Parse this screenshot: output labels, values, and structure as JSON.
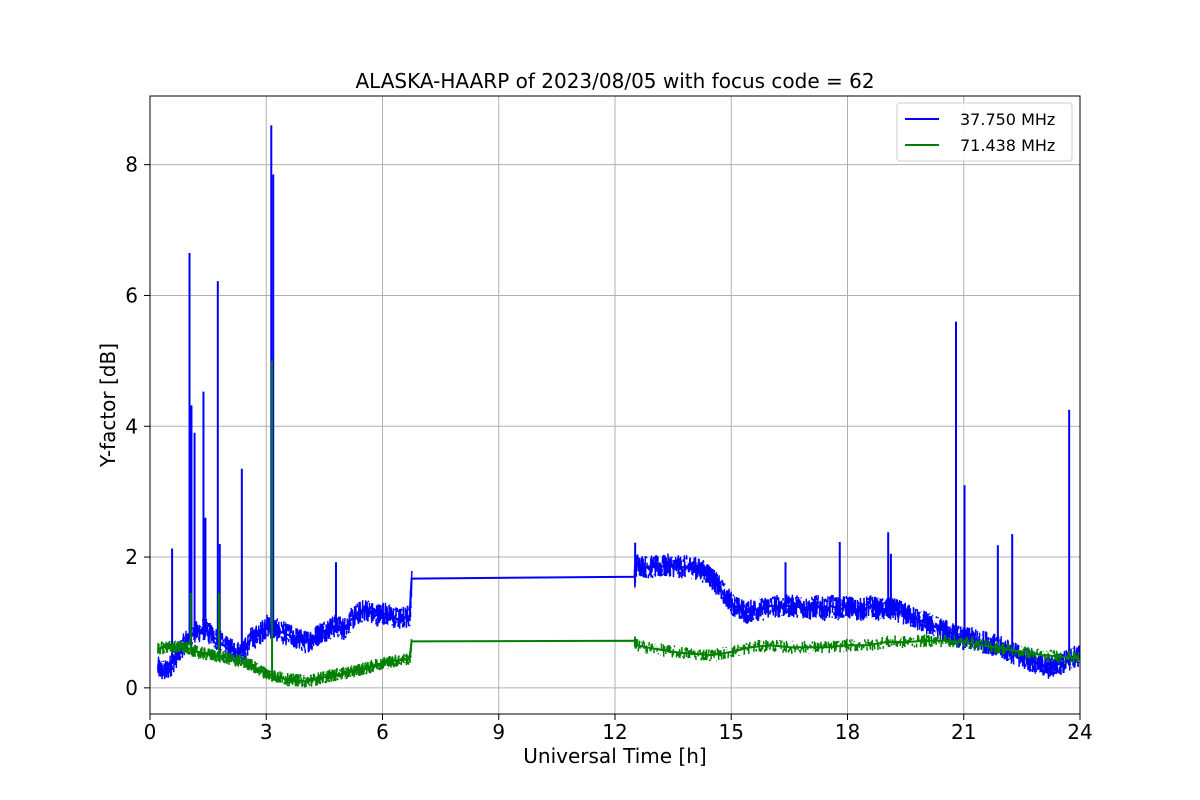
{
  "chart_data": {
    "type": "line",
    "title": "ALASKA-HAARP of 2023/08/05 with focus code = 62",
    "xlabel": "Universal Time [h]",
    "ylabel": "Y-factor [dB]",
    "xlim": [
      0,
      24
    ],
    "ylim": [
      -0.4,
      9.05
    ],
    "xticks": [
      0,
      3,
      6,
      9,
      12,
      15,
      18,
      21,
      24
    ],
    "xtick_labels": [
      "0",
      "3",
      "6",
      "9",
      "12",
      "15",
      "18",
      "21",
      "24"
    ],
    "yticks": [
      0,
      2,
      4,
      6,
      8
    ],
    "ytick_labels": [
      "0",
      "2",
      "4",
      "6",
      "8"
    ],
    "grid": true,
    "legend_position": "top-right",
    "series": [
      {
        "name": "37.750 MHz",
        "color": "#0000ff",
        "x": [
          0.2,
          0.4,
          0.6,
          0.8,
          1.0,
          1.2,
          1.4,
          1.6,
          1.8,
          2.0,
          2.2,
          2.4,
          2.6,
          2.8,
          3.0,
          3.2,
          3.4,
          3.6,
          3.8,
          4.0,
          4.2,
          4.4,
          4.6,
          4.8,
          5.0,
          5.2,
          5.4,
          5.6,
          5.8,
          6.0,
          6.2,
          6.4,
          6.7,
          6.75,
          12.5,
          12.55,
          12.8,
          13.0,
          13.2,
          13.4,
          13.6,
          13.8,
          14.0,
          14.2,
          14.4,
          14.6,
          14.8,
          15.0,
          15.2,
          15.4,
          15.6,
          15.8,
          16.0,
          16.2,
          16.4,
          16.6,
          16.8,
          17.0,
          17.2,
          17.4,
          17.6,
          17.8,
          18.0,
          18.2,
          18.4,
          18.6,
          18.8,
          19.0,
          19.2,
          19.4,
          19.6,
          19.8,
          20.0,
          20.2,
          20.4,
          20.6,
          20.8,
          21.0,
          21.2,
          21.4,
          21.6,
          21.8,
          22.0,
          22.2,
          22.4,
          22.6,
          22.8,
          23.0,
          23.2,
          23.4,
          23.6,
          23.8,
          24.0
        ],
        "y": [
          0.3,
          0.25,
          0.4,
          0.6,
          0.8,
          0.85,
          0.9,
          0.8,
          0.7,
          0.6,
          0.55,
          0.55,
          0.75,
          0.8,
          0.95,
          0.9,
          0.85,
          0.8,
          0.75,
          0.7,
          0.75,
          0.85,
          0.9,
          0.95,
          0.9,
          1.05,
          1.15,
          1.2,
          1.1,
          1.15,
          1.1,
          1.05,
          1.1,
          1.67,
          1.7,
          1.9,
          1.85,
          1.85,
          1.85,
          1.88,
          1.85,
          1.85,
          1.85,
          1.8,
          1.75,
          1.6,
          1.45,
          1.3,
          1.2,
          1.15,
          1.2,
          1.2,
          1.25,
          1.25,
          1.25,
          1.25,
          1.25,
          1.2,
          1.25,
          1.2,
          1.25,
          1.2,
          1.25,
          1.2,
          1.2,
          1.25,
          1.2,
          1.2,
          1.2,
          1.15,
          1.1,
          1.05,
          1.0,
          0.95,
          0.9,
          0.85,
          0.8,
          0.75,
          0.75,
          0.7,
          0.7,
          0.65,
          0.6,
          0.55,
          0.5,
          0.45,
          0.4,
          0.35,
          0.3,
          0.35,
          0.4,
          0.45,
          0.5
        ]
      },
      {
        "name": "71.438 MHz",
        "color": "#008000",
        "x": [
          0.2,
          0.4,
          0.6,
          0.8,
          1.0,
          1.2,
          1.4,
          1.6,
          1.8,
          2.0,
          2.2,
          2.4,
          2.6,
          2.8,
          3.0,
          3.2,
          3.4,
          3.6,
          3.8,
          4.0,
          4.2,
          4.4,
          4.6,
          4.8,
          5.0,
          5.2,
          5.4,
          5.6,
          5.8,
          6.0,
          6.2,
          6.4,
          6.7,
          6.75,
          12.5,
          12.55,
          13.0,
          13.5,
          14.0,
          14.5,
          15.0,
          15.5,
          16.0,
          16.5,
          17.0,
          17.5,
          18.0,
          18.5,
          19.0,
          19.5,
          20.0,
          20.5,
          21.0,
          21.5,
          22.0,
          22.5,
          23.0,
          23.5,
          24.0
        ],
        "y": [
          0.6,
          0.62,
          0.63,
          0.62,
          0.6,
          0.55,
          0.52,
          0.5,
          0.48,
          0.45,
          0.42,
          0.4,
          0.35,
          0.28,
          0.22,
          0.18,
          0.15,
          0.12,
          0.12,
          0.1,
          0.12,
          0.15,
          0.18,
          0.2,
          0.22,
          0.25,
          0.28,
          0.3,
          0.35,
          0.38,
          0.4,
          0.42,
          0.45,
          0.71,
          0.72,
          0.65,
          0.6,
          0.55,
          0.52,
          0.5,
          0.55,
          0.62,
          0.65,
          0.62,
          0.62,
          0.62,
          0.65,
          0.65,
          0.7,
          0.7,
          0.72,
          0.72,
          0.7,
          0.65,
          0.6,
          0.55,
          0.5,
          0.48,
          0.45
        ]
      }
    ],
    "spikes": [
      {
        "series": 0,
        "x": 0.57,
        "y": 2.13
      },
      {
        "series": 0,
        "x": 1.02,
        "y": 6.65
      },
      {
        "series": 0,
        "x": 1.07,
        "y": 4.32
      },
      {
        "series": 0,
        "x": 1.15,
        "y": 3.9
      },
      {
        "series": 0,
        "x": 1.38,
        "y": 4.53
      },
      {
        "series": 0,
        "x": 1.43,
        "y": 2.6
      },
      {
        "series": 0,
        "x": 1.75,
        "y": 6.22
      },
      {
        "series": 0,
        "x": 1.8,
        "y": 2.2
      },
      {
        "series": 0,
        "x": 2.37,
        "y": 3.35
      },
      {
        "series": 0,
        "x": 3.13,
        "y": 8.6
      },
      {
        "series": 0,
        "x": 3.18,
        "y": 7.85
      },
      {
        "series": 0,
        "x": 4.8,
        "y": 1.92
      },
      {
        "series": 0,
        "x": 12.52,
        "y": 2.22
      },
      {
        "series": 0,
        "x": 16.4,
        "y": 1.92
      },
      {
        "series": 0,
        "x": 17.8,
        "y": 2.23
      },
      {
        "series": 0,
        "x": 19.05,
        "y": 2.38
      },
      {
        "series": 0,
        "x": 19.12,
        "y": 2.05
      },
      {
        "series": 0,
        "x": 20.8,
        "y": 5.6
      },
      {
        "series": 0,
        "x": 21.02,
        "y": 3.1
      },
      {
        "series": 0,
        "x": 21.88,
        "y": 2.18
      },
      {
        "series": 0,
        "x": 22.25,
        "y": 2.35
      },
      {
        "series": 0,
        "x": 23.72,
        "y": 4.25
      },
      {
        "series": 1,
        "x": 1.05,
        "y": 1.45
      },
      {
        "series": 1,
        "x": 1.78,
        "y": 1.45
      },
      {
        "series": 1,
        "x": 3.15,
        "y": 5.0
      }
    ]
  }
}
